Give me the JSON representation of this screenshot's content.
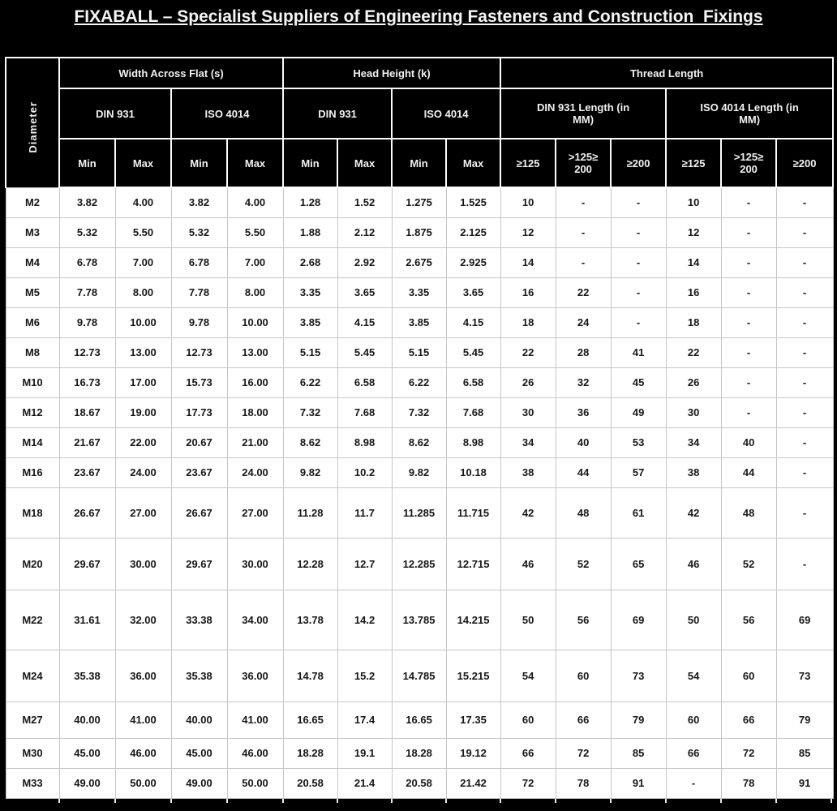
{
  "title": "FIXABALL – Specialist Suppliers of Engineering Fasteners and Construction  Fixings",
  "colors": {
    "page_background": "#000000",
    "header_background": "#000000",
    "header_text": "#f2f2f2",
    "header_grid": "#fdfdfd",
    "data_background": "#ffffff",
    "data_text": "#161616",
    "data_grid": "#c6c6c6"
  },
  "table": {
    "corner_label": "Diameter",
    "groups": [
      {
        "label": "Width Across Flat (s)",
        "subgroups": [
          {
            "label": "DIN 931",
            "cols": [
              "Min",
              "Max"
            ]
          },
          {
            "label": "ISO 4014",
            "cols": [
              "Min",
              "Max"
            ]
          }
        ]
      },
      {
        "label": "Head Height (k)",
        "subgroups": [
          {
            "label": "DIN 931",
            "cols": [
              "Min",
              "Max"
            ]
          },
          {
            "label": "ISO 4014",
            "cols": [
              "Min",
              "Max"
            ]
          }
        ]
      },
      {
        "label": "Thread Length",
        "subgroups": [
          {
            "label": "DIN 931 Length (in\nMM)",
            "cols": [
              "≥125",
              ">125≥\n200",
              "≥200"
            ]
          },
          {
            "label": "ISO 4014 Length (in\nMM)",
            "cols": [
              "≥125",
              ">125≥\n200",
              "≥200"
            ]
          }
        ]
      }
    ],
    "rows": [
      {
        "diameter": "M2",
        "values": [
          "3.82",
          "4.00",
          "3.82",
          "4.00",
          "1.28",
          "1.52",
          "1.275",
          "1.525",
          "10",
          "-",
          "-",
          "10",
          "-",
          "-"
        ]
      },
      {
        "diameter": "M3",
        "values": [
          "5.32",
          "5.50",
          "5.32",
          "5.50",
          "1.88",
          "2.12",
          "1.875",
          "2.125",
          "12",
          "-",
          "-",
          "12",
          "-",
          "-"
        ]
      },
      {
        "diameter": "M4",
        "values": [
          "6.78",
          "7.00",
          "6.78",
          "7.00",
          "2.68",
          "2.92",
          "2.675",
          "2.925",
          "14",
          "-",
          "-",
          "14",
          "-",
          "-"
        ]
      },
      {
        "diameter": "M5",
        "values": [
          "7.78",
          "8.00",
          "7.78",
          "8.00",
          "3.35",
          "3.65",
          "3.35",
          "3.65",
          "16",
          "22",
          "-",
          "16",
          "-",
          "-"
        ]
      },
      {
        "diameter": "M6",
        "values": [
          "9.78",
          "10.00",
          "9.78",
          "10.00",
          "3.85",
          "4.15",
          "3.85",
          "4.15",
          "18",
          "24",
          "-",
          "18",
          "-",
          "-"
        ]
      },
      {
        "diameter": "M8",
        "values": [
          "12.73",
          "13.00",
          "12.73",
          "13.00",
          "5.15",
          "5.45",
          "5.15",
          "5.45",
          "22",
          "28",
          "41",
          "22",
          "-",
          "-"
        ]
      },
      {
        "diameter": "M10",
        "values": [
          "16.73",
          "17.00",
          "15.73",
          "16.00",
          "6.22",
          "6.58",
          "6.22",
          "6.58",
          "26",
          "32",
          "45",
          "26",
          "-",
          "-"
        ]
      },
      {
        "diameter": "M12",
        "values": [
          "18.67",
          "19.00",
          "17.73",
          "18.00",
          "7.32",
          "7.68",
          "7.32",
          "7.68",
          "30",
          "36",
          "49",
          "30",
          "-",
          "-"
        ]
      },
      {
        "diameter": "M14",
        "values": [
          "21.67",
          "22.00",
          "20.67",
          "21.00",
          "8.62",
          "8.98",
          "8.62",
          "8.98",
          "34",
          "40",
          "53",
          "34",
          "40",
          "-"
        ]
      },
      {
        "diameter": "M16",
        "values": [
          "23.67",
          "24.00",
          "23.67",
          "24.00",
          "9.82",
          "10.2",
          "9.82",
          "10.18",
          "38",
          "44",
          "57",
          "38",
          "44",
          "-"
        ]
      },
      {
        "diameter": "M18",
        "values": [
          "26.67",
          "27.00",
          "26.67",
          "27.00",
          "11.28",
          "11.7",
          "11.285",
          "11.715",
          "42",
          "48",
          "61",
          "42",
          "48",
          "-"
        ]
      },
      {
        "diameter": "M20",
        "values": [
          "29.67",
          "30.00",
          "29.67",
          "30.00",
          "12.28",
          "12.7",
          "12.285",
          "12.715",
          "46",
          "52",
          "65",
          "46",
          "52",
          "-"
        ]
      },
      {
        "diameter": "M22",
        "values": [
          "31.61",
          "32.00",
          "33.38",
          "34.00",
          "13.78",
          "14.2",
          "13.785",
          "14.215",
          "50",
          "56",
          "69",
          "50",
          "56",
          "69"
        ]
      },
      {
        "diameter": "M24",
        "values": [
          "35.38",
          "36.00",
          "35.38",
          "36.00",
          "14.78",
          "15.2",
          "14.785",
          "15.215",
          "54",
          "60",
          "73",
          "54",
          "60",
          "73"
        ]
      },
      {
        "diameter": "M27",
        "values": [
          "40.00",
          "41.00",
          "40.00",
          "41.00",
          "16.65",
          "17.4",
          "16.65",
          "17.35",
          "60",
          "66",
          "79",
          "60",
          "66",
          "79"
        ]
      },
      {
        "diameter": "M30",
        "values": [
          "45.00",
          "46.00",
          "45.00",
          "46.00",
          "18.28",
          "19.1",
          "18.28",
          "19.12",
          "66",
          "72",
          "85",
          "66",
          "72",
          "85"
        ]
      },
      {
        "diameter": "M33",
        "values": [
          "49.00",
          "50.00",
          "49.00",
          "50.00",
          "20.58",
          "21.4",
          "20.58",
          "21.42",
          "72",
          "78",
          "91",
          "-",
          "78",
          "91"
        ]
      }
    ]
  }
}
